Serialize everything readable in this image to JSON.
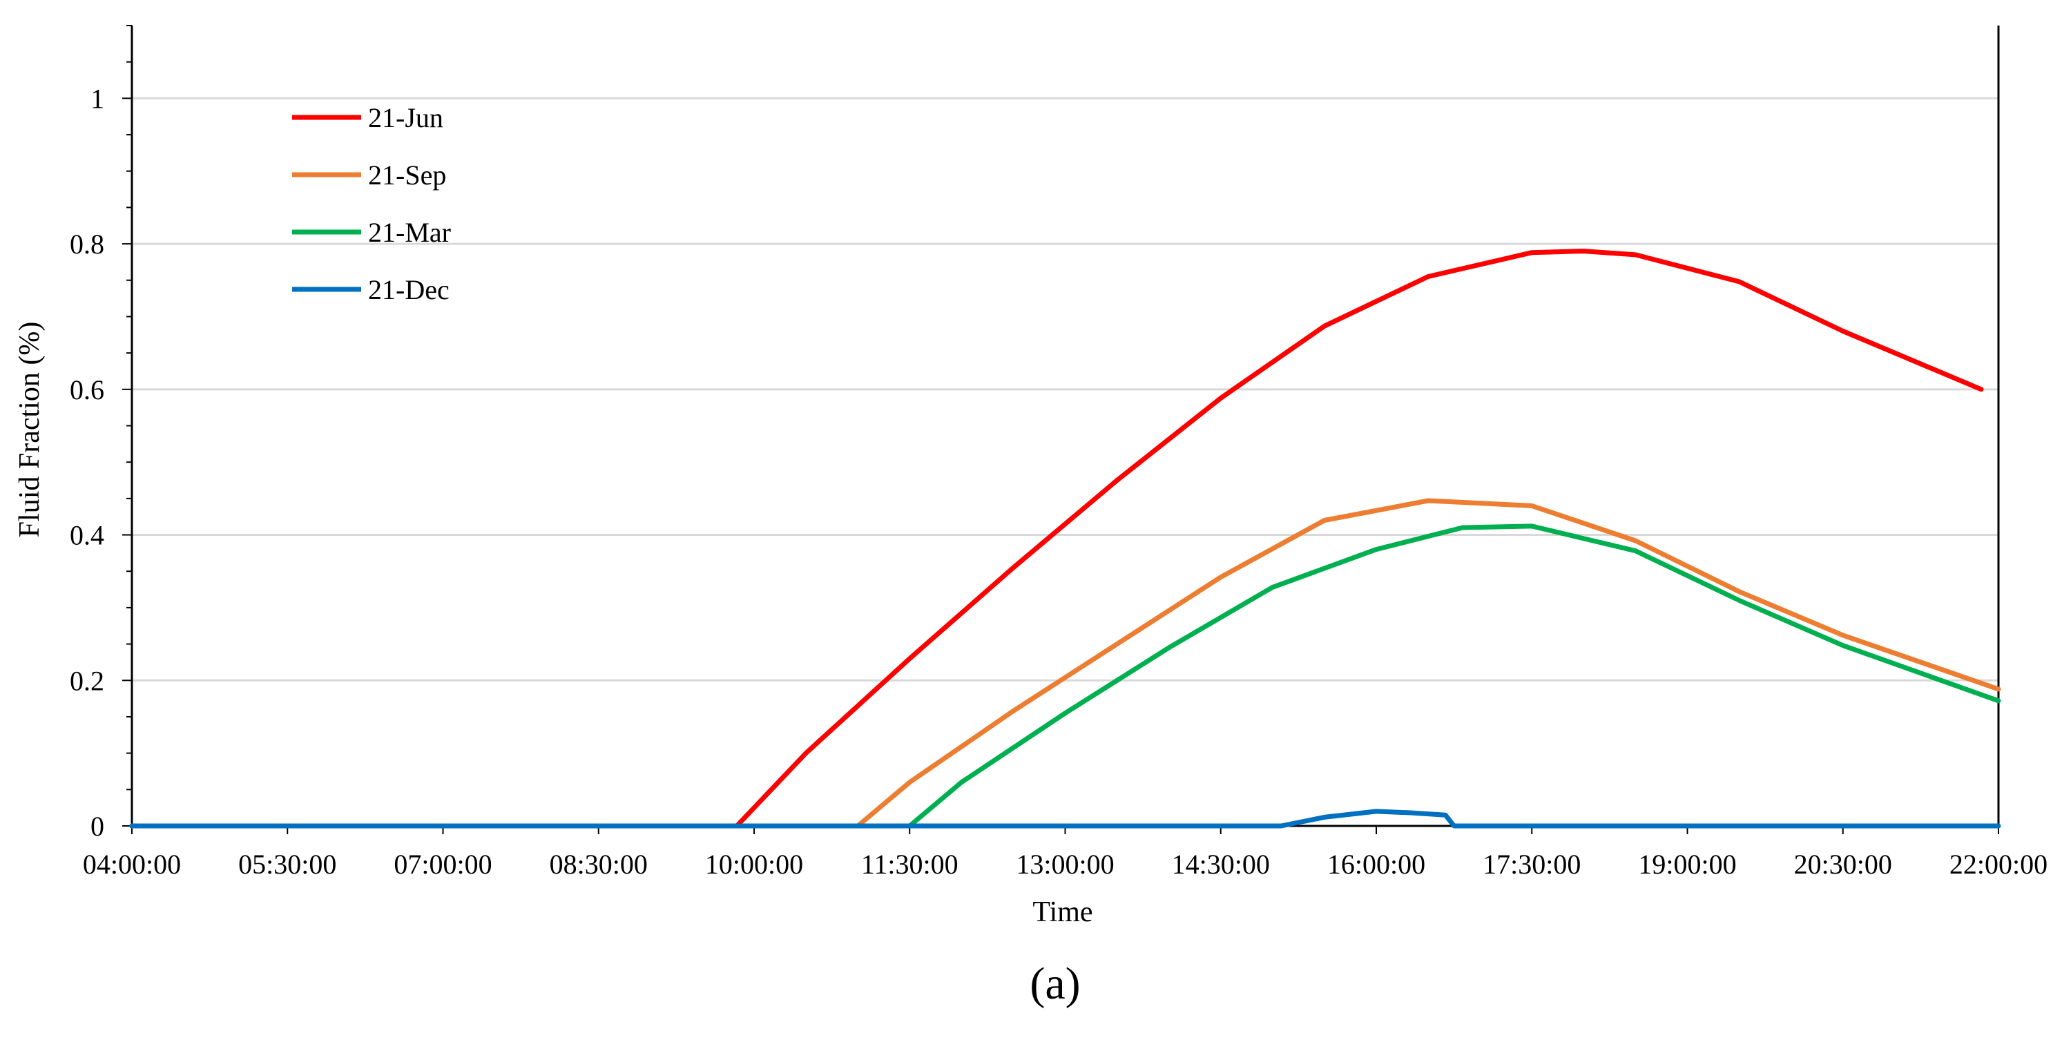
{
  "chart_data": {
    "type": "line",
    "xlabel": "Time",
    "ylabel": "Fluid Fraction (%)",
    "panel_label": "(a)",
    "xlim": [
      "04:00:00",
      "22:00:00"
    ],
    "ylim": [
      0,
      1.1
    ],
    "x_ticks": [
      "04:00:00",
      "05:30:00",
      "07:00:00",
      "08:30:00",
      "10:00:00",
      "11:30:00",
      "13:00:00",
      "14:30:00",
      "16:00:00",
      "17:30:00",
      "19:00:00",
      "20:30:00",
      "22:00:00"
    ],
    "y_ticks": [
      "0",
      "0.2",
      "0.4",
      "0.6",
      "0.8",
      "1"
    ],
    "grid": "horizontal",
    "legend_position": "top-left",
    "series": [
      {
        "name": "21-Jun",
        "color": "#ff0000",
        "x": [
          "04:00:00",
          "09:50:00",
          "10:30:00",
          "11:30:00",
          "12:30:00",
          "13:30:00",
          "14:30:00",
          "15:30:00",
          "16:30:00",
          "17:30:00",
          "18:00:00",
          "18:30:00",
          "19:30:00",
          "20:30:00",
          "21:50:00"
        ],
        "values": [
          0,
          0,
          0.1,
          0.23,
          0.355,
          0.475,
          0.588,
          0.687,
          0.755,
          0.788,
          0.79,
          0.785,
          0.748,
          0.68,
          0.6
        ]
      },
      {
        "name": "21-Sep",
        "color": "#ed7d31",
        "x": [
          "04:00:00",
          "11:00:00",
          "11:30:00",
          "12:30:00",
          "13:30:00",
          "14:30:00",
          "15:30:00",
          "16:30:00",
          "17:30:00",
          "18:30:00",
          "19:30:00",
          "20:30:00",
          "22:00:00"
        ],
        "values": [
          0,
          0,
          0.06,
          0.158,
          0.25,
          0.342,
          0.42,
          0.447,
          0.44,
          0.392,
          0.322,
          0.262,
          0.188
        ]
      },
      {
        "name": "21-Mar",
        "color": "#00b050",
        "x": [
          "04:00:00",
          "11:30:00",
          "12:00:00",
          "13:00:00",
          "14:00:00",
          "15:00:00",
          "16:00:00",
          "16:50:00",
          "17:30:00",
          "18:30:00",
          "19:30:00",
          "20:30:00",
          "22:00:00"
        ],
        "values": [
          0,
          0,
          0.06,
          0.155,
          0.245,
          0.328,
          0.38,
          0.41,
          0.412,
          0.378,
          0.31,
          0.248,
          0.172
        ]
      },
      {
        "name": "21-Dec",
        "color": "#0070c0",
        "x": [
          "04:00:00",
          "15:05:00",
          "15:30:00",
          "16:00:00",
          "16:20:00",
          "16:40:00",
          "16:45:00",
          "22:00:00"
        ],
        "values": [
          0,
          0,
          0.012,
          0.02,
          0.018,
          0.015,
          0,
          0
        ]
      }
    ]
  }
}
